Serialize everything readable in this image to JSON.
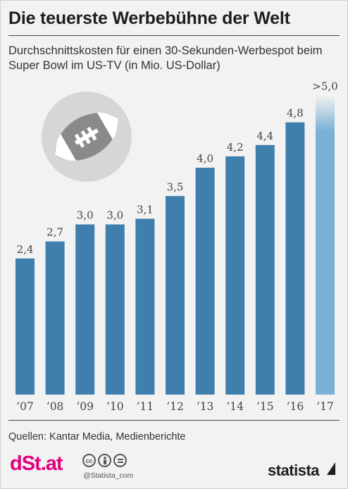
{
  "header": {
    "title": "Die teuerste Werbebühne der Welt",
    "subtitle": "Durchschnittskosten für einen 30-Sekunden-Werbespot beim Super Bowl im US-TV (in Mio. US-Dollar)"
  },
  "footer": {
    "source": "Quellen: Kantar Media, Medienberichte",
    "publisher_logo": "dSt.at",
    "license_icons": [
      "cc",
      "by",
      "nd"
    ],
    "handle": "@Statista_com",
    "brand": "statista"
  },
  "illustration": {
    "icon": "american-football-icon"
  },
  "colors": {
    "bar": "#3f7fae",
    "bar_estimate": "#79b0d6",
    "background": "#f2f2f2"
  },
  "chart_data": {
    "type": "bar",
    "categories": [
      "‘07",
      "‘08",
      "‘09",
      "‘10",
      "‘11",
      "‘12",
      "‘13",
      "‘14",
      "‘15",
      "‘16",
      "‘17"
    ],
    "values": [
      2.4,
      2.7,
      3.0,
      3.0,
      3.1,
      3.5,
      4.0,
      4.2,
      4.4,
      4.8,
      5.0
    ],
    "labels": [
      "2,4",
      "2,7",
      "3,0",
      "3,0",
      "3,1",
      "3,5",
      "4,0",
      "4,2",
      "4,4",
      "4,8",
      ">5,0"
    ],
    "estimated": [
      false,
      false,
      false,
      false,
      false,
      false,
      false,
      false,
      false,
      false,
      true
    ],
    "ylim": [
      0,
      5.2
    ],
    "grid": false,
    "legend": "none"
  }
}
